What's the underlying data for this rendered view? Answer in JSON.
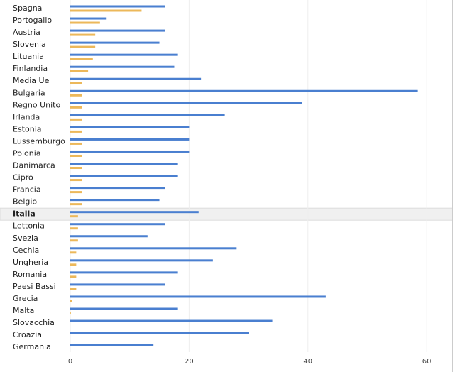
{
  "chart_data": {
    "type": "hbar",
    "categories": [
      "Spagna",
      "Portogallo",
      "Austria",
      "Slovenia",
      "Lituania",
      "Finlandia",
      "Media Ue",
      "Bulgaria",
      "Regno Unito",
      "Irlanda",
      "Estonia",
      "Lussemburgo",
      "Polonia",
      "Danimarca",
      "Cipro",
      "Francia",
      "Belgio",
      "Italia",
      "Lettonia",
      "Svezia",
      "Cechia",
      "Ungheria",
      "Romania",
      "Paesi Bassi",
      "Grecia",
      "Malta",
      "Slovacchia",
      "Croazia",
      "Germania"
    ],
    "series": [
      {
        "color": "#4a7fd0",
        "values": [
          16,
          6,
          16,
          15,
          18,
          17.5,
          22,
          58.5,
          39,
          26,
          20,
          20,
          20,
          18,
          18,
          16,
          15,
          21.6,
          16,
          13,
          28,
          24,
          18,
          16,
          43,
          18,
          34,
          30,
          14
        ]
      },
      {
        "color": "#ecb85a",
        "values": [
          12,
          5,
          4.2,
          4.2,
          3.8,
          3,
          2,
          2,
          2,
          2,
          2,
          2,
          2,
          2,
          2,
          2,
          2,
          1.3,
          1.3,
          1.3,
          1,
          1,
          1,
          1,
          0.3,
          0.1,
          0,
          0,
          0
        ]
      }
    ],
    "xlim": [
      0,
      64.4
    ],
    "xticks": [
      0,
      20,
      40,
      60
    ],
    "grid": true,
    "highlight_index": 17
  }
}
